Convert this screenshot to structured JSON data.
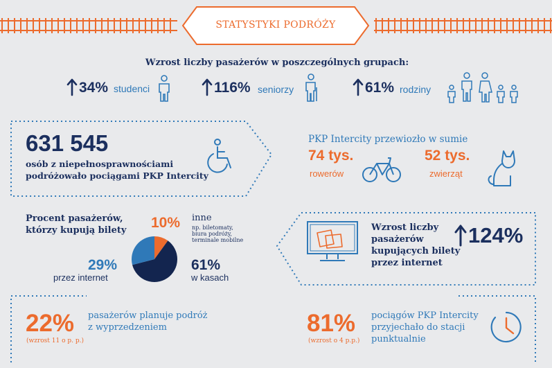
{
  "header": {
    "title": "STATYSTYKI PODRÓŻY"
  },
  "growth": {
    "heading": "Wzrost liczby pasażerów w poszczególnych grupach:",
    "items": [
      {
        "value": "34%",
        "label": "studenci"
      },
      {
        "value": "116%",
        "label": "seniorzy"
      },
      {
        "value": "61%",
        "label": "rodziny"
      }
    ]
  },
  "disabled": {
    "number": "631 545",
    "text_line1": "osób z niepełnosprawnościami",
    "text_line2": "podróżowało pociągami PKP Intercity"
  },
  "transported": {
    "heading": "PKP Intercity przewiozło w sumie",
    "bikes_value": "74 tys.",
    "bikes_label": "rowerów",
    "animals_value": "52 tys.",
    "animals_label": "zwierząt"
  },
  "tickets": {
    "heading_line1": "Procent pasażerów,",
    "heading_line2": "którzy kupują bilety",
    "other_value": "10%",
    "other_label": "inne",
    "other_note_line1": "np. biletomaty,",
    "other_note_line2": "biura podróży,",
    "other_note_line3": "terminale mobilne",
    "internet_value": "29%",
    "internet_label": "przez internet",
    "cashier_value": "61%",
    "cashier_label": "w kasach"
  },
  "pie_data": {
    "type": "pie",
    "slices": [
      {
        "label": "inne",
        "value": 10,
        "color": "#ec6b2d"
      },
      {
        "label": "w kasach",
        "value": 61,
        "color": "#13254f"
      },
      {
        "label": "przez internet",
        "value": 29,
        "color": "#2f79b8"
      }
    ]
  },
  "online": {
    "text_line1": "Wzrost liczby",
    "text_line2": "pasażerów",
    "text_line3": "kupujących bilety",
    "text_line4": "przez internet",
    "value": "124%"
  },
  "advance": {
    "value": "22%",
    "note": "(wzrost 11 o p. p.)",
    "text_line1": "pasażerów planuje podróż",
    "text_line2": "z wyprzedzeniem"
  },
  "punctual": {
    "value": "81%",
    "note": "(wzrost o 4 p.p.)",
    "text_line1": "pociągów PKP Intercity",
    "text_line2": "przyjechało do stacji",
    "text_line3": "punktualnie"
  },
  "colors": {
    "navy": "#1b2f5e",
    "orange": "#ec6b2d",
    "blue": "#2f79b8",
    "background": "#e9eaec"
  }
}
